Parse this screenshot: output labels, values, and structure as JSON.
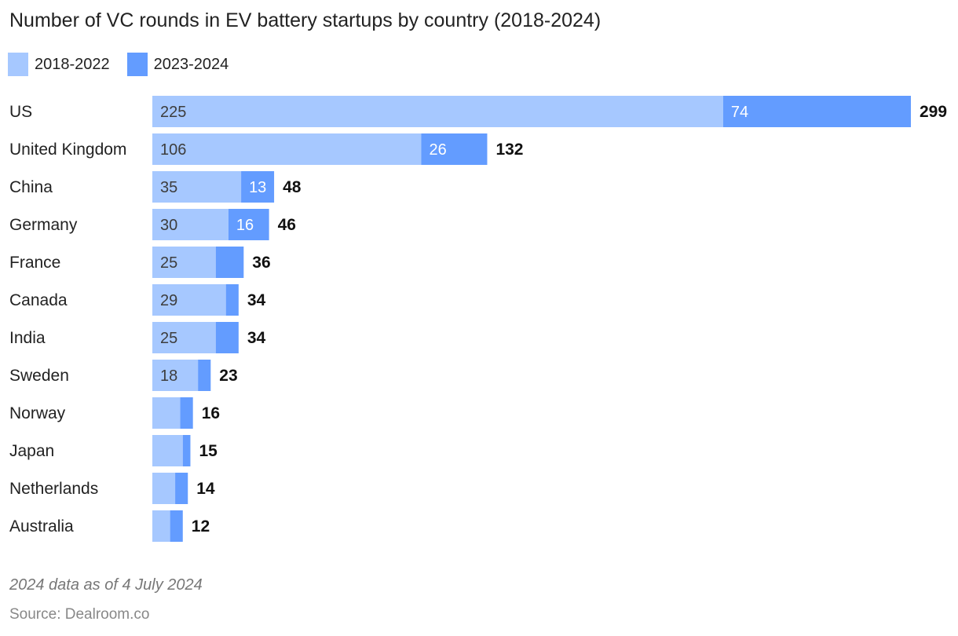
{
  "chart_data": {
    "type": "bar",
    "orientation": "horizontal",
    "stacked": true,
    "title": "Number of VC rounds in EV battery startups by country (2018-2024)",
    "categories": [
      "US",
      "United Kingdom",
      "China",
      "Germany",
      "France",
      "Canada",
      "India",
      "Sweden",
      "Norway",
      "Japan",
      "Netherlands",
      "Australia"
    ],
    "series": [
      {
        "name": "2018-2022",
        "color": "#a6c8ff",
        "values": [
          225,
          106,
          35,
          30,
          25,
          29,
          25,
          18,
          11,
          12,
          9,
          7
        ],
        "labels": [
          "225",
          "106",
          "35",
          "30",
          "25",
          "29",
          "25",
          "18",
          "",
          "",
          "",
          ""
        ]
      },
      {
        "name": "2023-2024",
        "color": "#639cff",
        "values": [
          74,
          26,
          13,
          16,
          11,
          5,
          9,
          5,
          5,
          3,
          5,
          5
        ],
        "labels": [
          "74",
          "26",
          "13",
          "16",
          "",
          "",
          "",
          "",
          "",
          "",
          "",
          ""
        ]
      }
    ],
    "totals": [
      "299",
      "132",
      "48",
      "46",
      "36",
      "34",
      "34",
      "23",
      "16",
      "15",
      "14",
      "12"
    ],
    "xlim": [
      0,
      299
    ],
    "grid": false,
    "legend": "top-left"
  },
  "footnote": "2024 data as of 4 July 2024",
  "source": "Source: Dealroom.co"
}
